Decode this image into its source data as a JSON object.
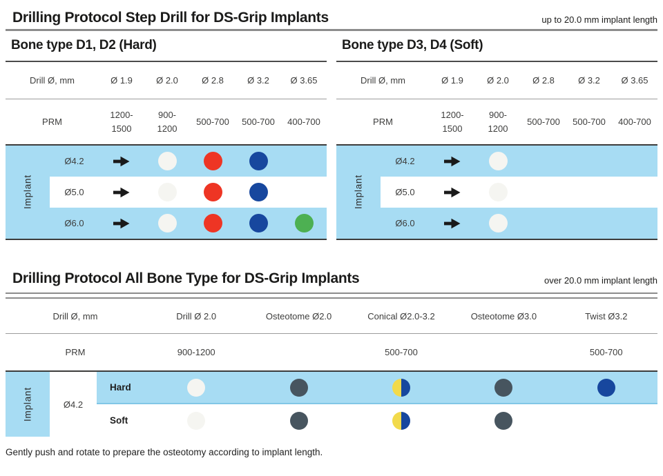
{
  "header": {
    "title": "Drilling Protocol Step Drill for DS-Grip Implants",
    "note": "up to 20.0 mm implant length"
  },
  "step_drill": {
    "tables": [
      {
        "title": "Bone type D1, D2 (Hard)",
        "drill_label": "Drill Ø, mm",
        "drill_columns": [
          "Ø 1.9",
          "Ø 2.0",
          "Ø 2.8",
          "Ø 3.2",
          "Ø 3.65"
        ],
        "prm_label": "PRM",
        "prm_values": [
          "1200-1500",
          "900-1200",
          "500-700",
          "500-700",
          "400-700"
        ],
        "implant_label": "Implant",
        "rows": [
          {
            "implant": "Ø4.2",
            "cells": [
              "arrow",
              "white",
              "red",
              "blue",
              "none"
            ]
          },
          {
            "implant": "Ø5.0",
            "cells": [
              "arrow",
              "white",
              "red",
              "blue",
              "none"
            ]
          },
          {
            "implant": "Ø6.0",
            "cells": [
              "arrow",
              "white",
              "red",
              "blue",
              "green"
            ]
          }
        ]
      },
      {
        "title": "Bone type D3, D4 (Soft)",
        "drill_label": "Drill Ø, mm",
        "drill_columns": [
          "Ø 1.9",
          "Ø 2.0",
          "Ø 2.8",
          "Ø 3.2",
          "Ø 3.65"
        ],
        "prm_label": "PRM",
        "prm_values": [
          "1200-1500",
          "900-1200",
          "500-700",
          "500-700",
          "400-700"
        ],
        "implant_label": "Implant",
        "rows": [
          {
            "implant": "Ø4.2",
            "cells": [
              "arrow",
              "white",
              "none",
              "none",
              "none"
            ]
          },
          {
            "implant": "Ø5.0",
            "cells": [
              "arrow",
              "white",
              "none",
              "none",
              "none"
            ]
          },
          {
            "implant": "Ø6.0",
            "cells": [
              "arrow",
              "white",
              "none",
              "none",
              "none"
            ]
          }
        ]
      }
    ]
  },
  "all_bone": {
    "title": "Drilling Protocol All Bone Type for DS-Grip Implants",
    "note": "over 20.0 mm implant length",
    "drill_label": "Drill Ø, mm",
    "columns": [
      "Drill Ø 2.0",
      "Osteotome Ø2.0",
      "Conical Ø2.0-3.2",
      "Osteotome Ø3.0",
      "Twist Ø3.2"
    ],
    "prm_label": "PRM",
    "prm_values": [
      "900-1200",
      "",
      "500-700",
      "",
      "500-700"
    ],
    "implant_label": "Implant",
    "implant_size": "Ø4.2",
    "rows": [
      {
        "bone": "Hard",
        "cells": [
          "white",
          "gray",
          "bicolor",
          "gray",
          "blue"
        ]
      },
      {
        "bone": "Soft",
        "cells": [
          "white",
          "gray",
          "bicolor",
          "gray",
          "none"
        ]
      }
    ]
  },
  "footnote": "Gently push and rotate to prepare the osteotomy according to implant length.",
  "colors": {
    "light_blue": "#a7dcf3",
    "light_blue_border": "#82c7e6",
    "red": "#ee3524",
    "blue": "#17479e",
    "green": "#4db052",
    "yellow": "#f2da4b",
    "white_dot": "#f5f5f1",
    "gray_dot": "#47555f",
    "line_dark": "#3c3c3b",
    "rule_gray": "#8c8c8c",
    "rule_light": "#9c9c9c",
    "text": "#3d3d3c",
    "title": "#1b1b1a"
  }
}
